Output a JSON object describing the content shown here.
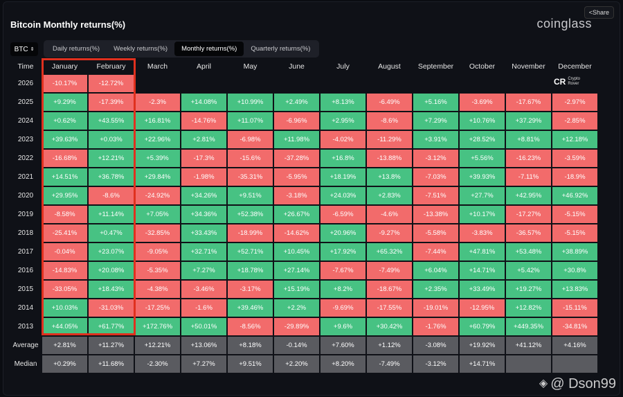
{
  "header": {
    "title": "Bitcoin Monthly returns(%)",
    "brand": "coinglass",
    "share_label": "Share"
  },
  "controls": {
    "symbol": "BTC",
    "tabs": [
      {
        "label": "Daily returns(%)",
        "active": false
      },
      {
        "label": "Weekly returns(%)",
        "active": false
      },
      {
        "label": "Monthly returns(%)",
        "active": true
      },
      {
        "label": "Quarterly returns(%)",
        "active": false
      }
    ]
  },
  "table": {
    "time_header": "Time",
    "months": [
      "January",
      "February",
      "March",
      "April",
      "May",
      "June",
      "July",
      "August",
      "September",
      "October",
      "November",
      "December"
    ],
    "rows": [
      {
        "year": "2026",
        "values": [
          "-10.17%",
          "-12.72%",
          "",
          "",
          "",
          "",
          "",
          "",
          "",
          "",
          "",
          ""
        ]
      },
      {
        "year": "2025",
        "values": [
          "+9.29%",
          "-17.39%",
          "-2.3%",
          "+14.08%",
          "+10.99%",
          "+2.49%",
          "+8.13%",
          "-6.49%",
          "+5.16%",
          "-3.69%",
          "-17.67%",
          "-2.97%"
        ]
      },
      {
        "year": "2024",
        "values": [
          "+0.62%",
          "+43.55%",
          "+16.81%",
          "-14.76%",
          "+11.07%",
          "-6.96%",
          "+2.95%",
          "-8.6%",
          "+7.29%",
          "+10.76%",
          "+37.29%",
          "-2.85%"
        ]
      },
      {
        "year": "2023",
        "values": [
          "+39.63%",
          "+0.03%",
          "+22.96%",
          "+2.81%",
          "-6.98%",
          "+11.98%",
          "-4.02%",
          "-11.29%",
          "+3.91%",
          "+28.52%",
          "+8.81%",
          "+12.18%"
        ]
      },
      {
        "year": "2022",
        "values": [
          "-16.68%",
          "+12.21%",
          "+5.39%",
          "-17.3%",
          "-15.6%",
          "-37.28%",
          "+16.8%",
          "-13.88%",
          "-3.12%",
          "+5.56%",
          "-16.23%",
          "-3.59%"
        ]
      },
      {
        "year": "2021",
        "values": [
          "+14.51%",
          "+36.78%",
          "+29.84%",
          "-1.98%",
          "-35.31%",
          "-5.95%",
          "+18.19%",
          "+13.8%",
          "-7.03%",
          "+39.93%",
          "-7.11%",
          "-18.9%"
        ]
      },
      {
        "year": "2020",
        "values": [
          "+29.95%",
          "-8.6%",
          "-24.92%",
          "+34.26%",
          "+9.51%",
          "-3.18%",
          "+24.03%",
          "+2.83%",
          "-7.51%",
          "+27.7%",
          "+42.95%",
          "+46.92%"
        ]
      },
      {
        "year": "2019",
        "values": [
          "-8.58%",
          "+11.14%",
          "+7.05%",
          "+34.36%",
          "+52.38%",
          "+26.67%",
          "-6.59%",
          "-4.6%",
          "-13.38%",
          "+10.17%",
          "-17.27%",
          "-5.15%"
        ]
      },
      {
        "year": "2018",
        "values": [
          "-25.41%",
          "+0.47%",
          "-32.85%",
          "+33.43%",
          "-18.99%",
          "-14.62%",
          "+20.96%",
          "-9.27%",
          "-5.58%",
          "-3.83%",
          "-36.57%",
          "-5.15%"
        ]
      },
      {
        "year": "2017",
        "values": [
          "-0.04%",
          "+23.07%",
          "-9.05%",
          "+32.71%",
          "+52.71%",
          "+10.45%",
          "+17.92%",
          "+65.32%",
          "-7.44%",
          "+47.81%",
          "+53.48%",
          "+38.89%"
        ]
      },
      {
        "year": "2016",
        "values": [
          "-14.83%",
          "+20.08%",
          "-5.35%",
          "+7.27%",
          "+18.78%",
          "+27.14%",
          "-7.67%",
          "-7.49%",
          "+6.04%",
          "+14.71%",
          "+5.42%",
          "+30.8%"
        ]
      },
      {
        "year": "2015",
        "values": [
          "-33.05%",
          "+18.43%",
          "-4.38%",
          "-3.46%",
          "-3.17%",
          "+15.19%",
          "+8.2%",
          "-18.67%",
          "+2.35%",
          "+33.49%",
          "+19.27%",
          "+13.83%"
        ]
      },
      {
        "year": "2014",
        "values": [
          "+10.03%",
          "-31.03%",
          "-17.25%",
          "-1.6%",
          "+39.46%",
          "+2.2%",
          "-9.69%",
          "-17.55%",
          "-19.01%",
          "-12.95%",
          "+12.82%",
          "-15.11%"
        ]
      },
      {
        "year": "2013",
        "values": [
          "+44.05%",
          "+61.77%",
          "+172.76%",
          "+50.01%",
          "-8.56%",
          "-29.89%",
          "+9.6%",
          "+30.42%",
          "-1.76%",
          "+60.79%",
          "+449.35%",
          "-34.81%"
        ]
      }
    ],
    "stats": [
      {
        "label": "Average",
        "values": [
          "+2.81%",
          "+11.27%",
          "+12.21%",
          "+13.06%",
          "+8.18%",
          "-0.14%",
          "+7.60%",
          "+1.12%",
          "-3.08%",
          "+19.92%",
          "+41.12%",
          "+4.16%"
        ]
      },
      {
        "label": "Median",
        "values": [
          "+0.29%",
          "+11.68%",
          "-2.30%",
          "+7.27%",
          "+9.51%",
          "+2.20%",
          "+8.20%",
          "-7.49%",
          "-3.12%",
          "+14.71%",
          "",
          ""
        ]
      }
    ],
    "highlighted_months": [
      "January",
      "February"
    ]
  },
  "overlays": {
    "rover_logo": "Crypto Rover",
    "watermark": "@ Dson99"
  },
  "colors": {
    "positive": "#47c283",
    "negative": "#f26b6b",
    "stat": "#5a5b60",
    "highlight": "#e0301e"
  }
}
